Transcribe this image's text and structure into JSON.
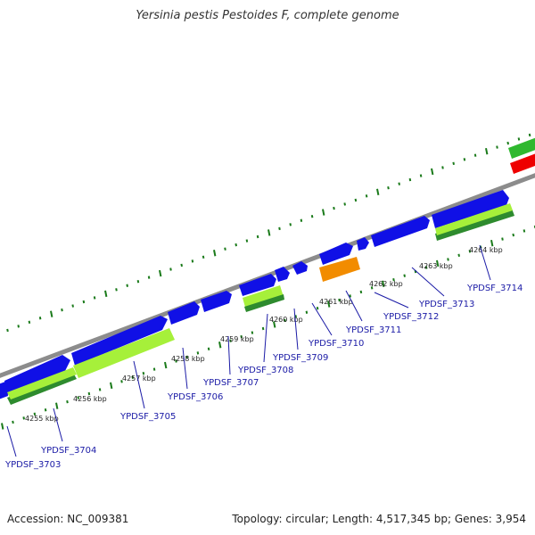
{
  "title": "Yersinia pestis Pestoides F, complete genome",
  "footer": {
    "accession": "Accession: NC_009381",
    "summary": "Topology: circular; Length: 4,517,345 bp; Genes: 3,954"
  },
  "colors": {
    "backbone": "#8c8c8c",
    "forward_gene": "#1010e6",
    "reverse_gene_light": "#a6f03a",
    "reverse_gene_dark": "#2e8b2e",
    "orange_feature": "#f28c00",
    "red_feature": "#ee0000",
    "tick": "#1a7a1a",
    "label": "#1a1aa6"
  },
  "scale_labels": [
    "4255 kbp",
    "4256 kbp",
    "4257 kbp",
    "4258 kbp",
    "4259 kbp",
    "4260 kbp",
    "4261 kbp",
    "4262 kbp",
    "4263 kbp",
    "4264 kbp"
  ],
  "gene_labels": [
    "YPDSF_3703",
    "YPDSF_3704",
    "YPDSF_3705",
    "YPDSF_3706",
    "YPDSF_3707",
    "YPDSF_3708",
    "YPDSF_3709",
    "YPDSF_3710",
    "YPDSF_3711",
    "YPDSF_3712",
    "YPDSF_3713",
    "YPDSF_3714"
  ]
}
